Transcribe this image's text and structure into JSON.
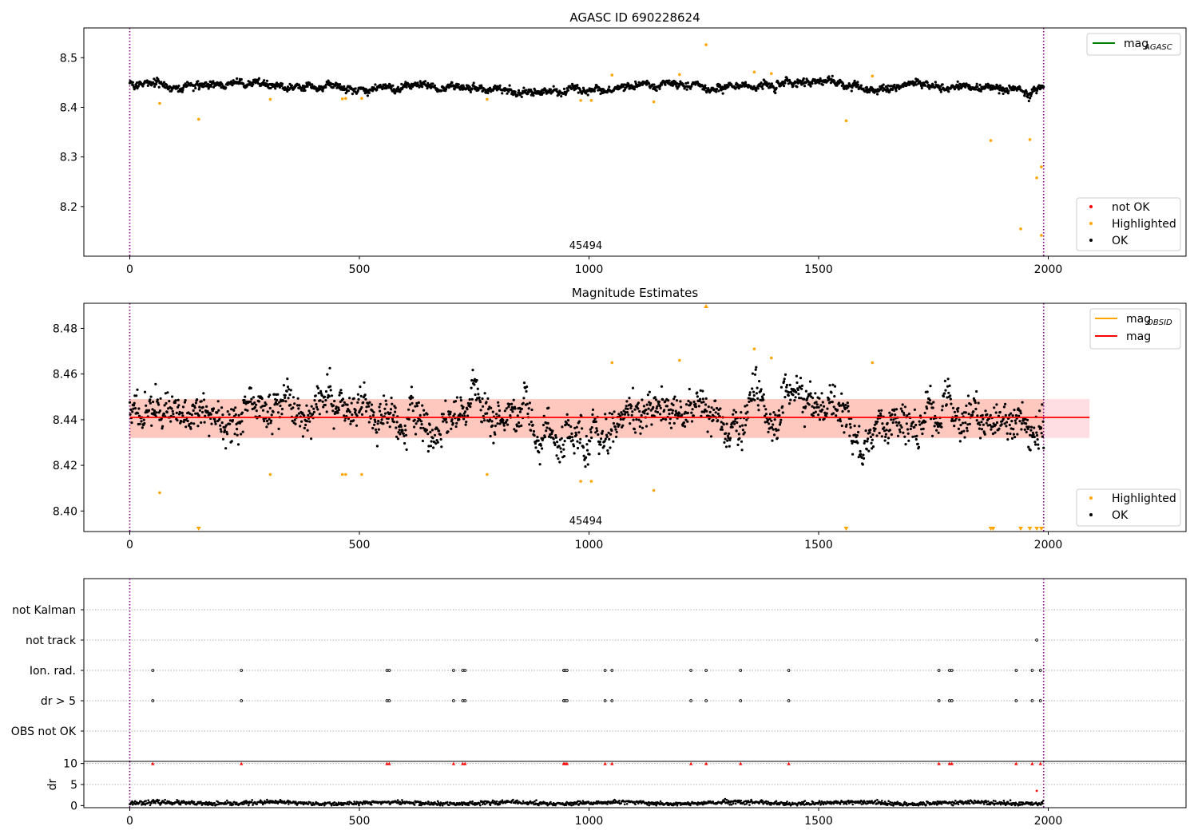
{
  "chart_data": [
    {
      "type": "scatter",
      "title": "AGASC ID 690228624",
      "xlim": [
        -100,
        2300
      ],
      "ylim": [
        8.1,
        8.56
      ],
      "xticks": [
        0,
        500,
        1000,
        1500,
        2000
      ],
      "yticks": [
        8.2,
        8.3,
        8.4,
        8.5
      ],
      "yprecision": 1,
      "vlines": [
        0,
        1990
      ],
      "annotation": {
        "text": "45494",
        "x": 993
      },
      "series": [
        {
          "name": "not OK",
          "color": "#ff0000",
          "points": []
        },
        {
          "name": "Highlighted",
          "color": "#ffa500",
          "points": [
            [
              65,
              8.408
            ],
            [
              150,
              8.376
            ],
            [
              306,
              8.416
            ],
            [
              463,
              8.417
            ],
            [
              470,
              8.418
            ],
            [
              505,
              8.418
            ],
            [
              778,
              8.416
            ],
            [
              982,
              8.414
            ],
            [
              1005,
              8.414
            ],
            [
              1050,
              8.465
            ],
            [
              1141,
              8.411
            ],
            [
              1197,
              8.466
            ],
            [
              1255,
              8.526
            ],
            [
              1360,
              8.471
            ],
            [
              1397,
              8.468
            ],
            [
              1560,
              8.373
            ],
            [
              1617,
              8.463
            ],
            [
              1875,
              8.333
            ],
            [
              1940,
              8.155
            ],
            [
              1960,
              8.335
            ],
            [
              1975,
              8.258
            ],
            [
              1985,
              8.28
            ],
            [
              1985,
              8.142
            ]
          ]
        },
        {
          "name": "OK",
          "color": "#000000",
          "generator": "band",
          "seed": 7
        }
      ],
      "legend": [
        {
          "label": "mag",
          "sub": "AGASC",
          "kind": "line",
          "color": "#008000",
          "position": "upper-right"
        },
        {
          "label": "not OK",
          "kind": "dot",
          "color": "#ff0000",
          "position": "lower-right"
        },
        {
          "label": "Highlighted",
          "kind": "dot",
          "color": "#ffa500",
          "position": "lower-right"
        },
        {
          "label": "OK",
          "kind": "dot",
          "color": "#000000",
          "position": "lower-right"
        }
      ]
    },
    {
      "type": "scatter",
      "title": "Magnitude Estimates",
      "xlim": [
        -100,
        2300
      ],
      "ylim": [
        8.391,
        8.491
      ],
      "xticks": [
        0,
        500,
        1000,
        1500,
        2000
      ],
      "yticks": [
        8.4,
        8.42,
        8.44,
        8.46,
        8.48
      ],
      "yprecision": 2,
      "vlines": [
        0,
        1990
      ],
      "mag_line": {
        "y": 8.441,
        "x": [
          0,
          2090
        ],
        "color": "#ff0000"
      },
      "mag_band": {
        "y": [
          8.432,
          8.449
        ],
        "x": [
          0,
          2090
        ],
        "color": "#ffb6c1"
      },
      "obsid_band": {
        "y": [
          8.432,
          8.449
        ],
        "x": [
          0,
          1990
        ],
        "color": "#ffa07a"
      },
      "annotation": {
        "text": "45494",
        "x": 993
      },
      "series": [
        {
          "name": "Highlighted",
          "color": "#ffa500",
          "points": [
            [
              65,
              8.408
            ],
            [
              306,
              8.416
            ],
            [
              463,
              8.416
            ],
            [
              470,
              8.416
            ],
            [
              505,
              8.416
            ],
            [
              778,
              8.416
            ],
            [
              982,
              8.413
            ],
            [
              1005,
              8.413
            ],
            [
              1050,
              8.465
            ],
            [
              1141,
              8.409
            ],
            [
              1197,
              8.466
            ],
            [
              1360,
              8.471
            ],
            [
              1397,
              8.467
            ],
            [
              1617,
              8.465
            ]
          ],
          "clipped_low": [
            150,
            1560,
            1875,
            1880,
            1940,
            1960,
            1975,
            1985
          ],
          "clipped_high": [
            1255
          ]
        },
        {
          "name": "OK",
          "color": "#000000",
          "generator": "scatter",
          "seed": 11
        }
      ],
      "legend": [
        {
          "label": "mag",
          "sub": "OBSID",
          "kind": "line",
          "color": "#ffa500",
          "position": "upper-right"
        },
        {
          "label": "mag",
          "kind": "line",
          "color": "#ff0000",
          "position": "upper-right"
        },
        {
          "label": "Highlighted",
          "kind": "dot",
          "color": "#ffa500",
          "position": "lower-right"
        },
        {
          "label": "OK",
          "kind": "dot",
          "color": "#000000",
          "position": "lower-right"
        }
      ]
    },
    {
      "type": "scatter",
      "title": "",
      "xlim": [
        -100,
        2300
      ],
      "categories": [
        "not Kalman",
        "not track",
        "Ion. rad.",
        "dr > 5",
        "OBS not OK"
      ],
      "flags": {
        "not Kalman": [],
        "not track": [
          1975
        ],
        "Ion. rad.": [
          50,
          243,
          560,
          565,
          705,
          725,
          730,
          945,
          948,
          952,
          1035,
          1050,
          1222,
          1255,
          1330,
          1435,
          1762,
          1785,
          1790,
          1930,
          1965,
          1983
        ],
        "dr > 5": [
          50,
          243,
          560,
          565,
          705,
          725,
          730,
          945,
          948,
          952,
          1035,
          1050,
          1222,
          1255,
          1330,
          1435,
          1762,
          1785,
          1790,
          1930,
          1965,
          1983
        ],
        "OBS not OK": []
      },
      "vlines": [
        0,
        1990
      ]
    },
    {
      "type": "scatter",
      "title": "",
      "xlim": [
        -100,
        2300
      ],
      "ylim": [
        -0.5,
        10.5
      ],
      "xticks": [
        0,
        500,
        1000,
        1500,
        2000
      ],
      "yticks": [
        0,
        5,
        10
      ],
      "ylabel": "dr",
      "clip_value": 10,
      "vlines": [
        0,
        1990
      ],
      "outliers": [
        [
          50,
          10
        ],
        [
          243,
          10
        ],
        [
          560,
          10
        ],
        [
          565,
          10
        ],
        [
          705,
          10
        ],
        [
          725,
          10
        ],
        [
          730,
          10
        ],
        [
          945,
          10
        ],
        [
          948,
          10
        ],
        [
          952,
          10
        ],
        [
          1035,
          10
        ],
        [
          1050,
          10
        ],
        [
          1222,
          10
        ],
        [
          1255,
          10
        ],
        [
          1330,
          10
        ],
        [
          1435,
          10
        ],
        [
          1762,
          10
        ],
        [
          1785,
          10
        ],
        [
          1790,
          10
        ],
        [
          1930,
          10
        ],
        [
          1965,
          10
        ],
        [
          1983,
          10
        ],
        [
          1975,
          3.5
        ]
      ],
      "series": [
        {
          "name": "dr",
          "color": "#000000",
          "generator": "dr",
          "seed": 23
        }
      ]
    }
  ]
}
